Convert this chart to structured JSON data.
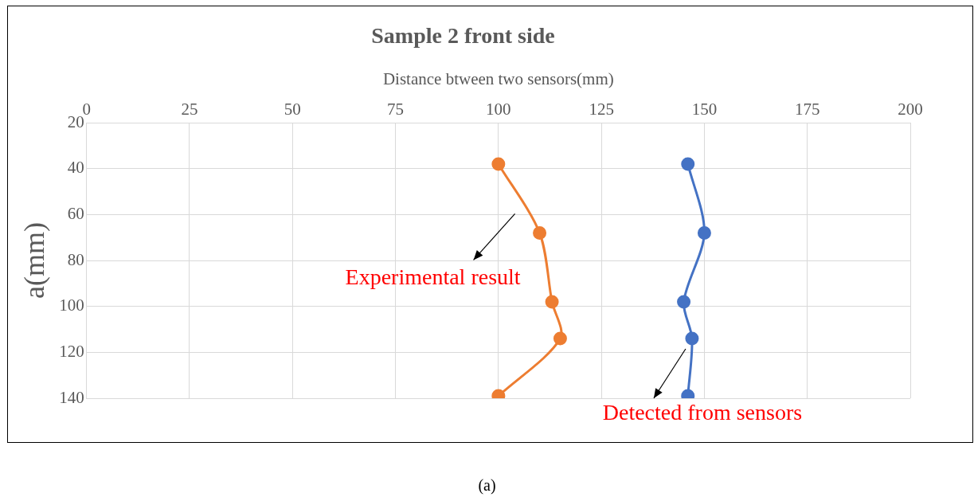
{
  "chart_data": {
    "type": "line",
    "title": "Sample 2 front side",
    "xlabel": "Distance btween two sensors(mm)",
    "ylabel": "a(mm)",
    "series": [
      {
        "name": "Experimental result",
        "color": "#ed7d31",
        "x": [
          100,
          110,
          113,
          115,
          100
        ],
        "values": [
          38,
          68,
          98,
          114,
          139
        ]
      },
      {
        "name": "Detected from sensors",
        "color": "#4472c4",
        "x": [
          146,
          150,
          145,
          147,
          146
        ],
        "values": [
          38,
          68,
          98,
          114,
          139
        ]
      }
    ],
    "xlim": [
      0,
      200
    ],
    "xticks": [
      0,
      25,
      50,
      75,
      100,
      125,
      150,
      175,
      200
    ],
    "ylim": [
      140,
      20
    ],
    "yticks": [
      20,
      40,
      60,
      80,
      100,
      120,
      140
    ],
    "grid": true,
    "legend": false,
    "marker": "circle",
    "line_style": "solid",
    "annotations": [
      "(a)"
    ]
  }
}
